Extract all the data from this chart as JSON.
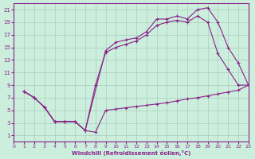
{
  "xlabel": "Windchill (Refroidissement éolien,°C)",
  "background_color": "#cceedd",
  "line_color": "#882288",
  "xlim": [
    0,
    23
  ],
  "ylim": [
    0,
    22
  ],
  "xticks": [
    0,
    1,
    2,
    3,
    4,
    5,
    6,
    7,
    8,
    9,
    10,
    11,
    12,
    13,
    14,
    15,
    16,
    17,
    18,
    19,
    20,
    21,
    22,
    23
  ],
  "yticks": [
    1,
    3,
    5,
    7,
    9,
    11,
    13,
    15,
    17,
    19,
    21
  ],
  "line1_x": [
    1,
    2,
    3,
    4,
    5,
    6,
    7,
    8,
    9,
    10,
    11,
    12,
    13,
    14,
    15,
    16,
    17,
    18,
    19,
    20,
    21,
    22,
    23
  ],
  "line1_y": [
    8.0,
    7.0,
    5.5,
    3.2,
    3.2,
    3.2,
    1.8,
    1.5,
    5.0,
    5.2,
    5.4,
    5.6,
    5.8,
    6.0,
    6.2,
    6.5,
    6.8,
    7.0,
    7.3,
    7.6,
    7.9,
    8.2,
    9.0
  ],
  "line2_x": [
    1,
    2,
    3,
    4,
    5,
    6,
    7,
    9,
    10,
    11,
    12,
    13,
    14,
    15,
    16,
    17,
    18,
    19,
    20,
    21,
    22,
    23
  ],
  "line2_y": [
    8.0,
    7.0,
    5.5,
    3.2,
    3.2,
    3.2,
    1.8,
    14.5,
    15.8,
    16.2,
    16.5,
    17.5,
    19.5,
    19.5,
    20.0,
    19.5,
    21.0,
    21.3,
    19.0,
    15.0,
    12.5,
    9.0
  ],
  "line3_x": [
    1,
    2,
    3,
    4,
    5,
    6,
    7,
    8,
    9,
    10,
    11,
    12,
    13,
    14,
    15,
    16,
    17,
    18,
    19,
    20,
    21,
    22,
    23
  ],
  "line3_y": [
    8.0,
    7.0,
    5.5,
    3.2,
    3.2,
    3.2,
    1.8,
    9.0,
    14.2,
    15.0,
    15.5,
    16.0,
    17.0,
    18.5,
    19.0,
    19.3,
    19.0,
    20.0,
    19.0,
    14.0,
    11.5,
    9.0,
    9.0
  ]
}
